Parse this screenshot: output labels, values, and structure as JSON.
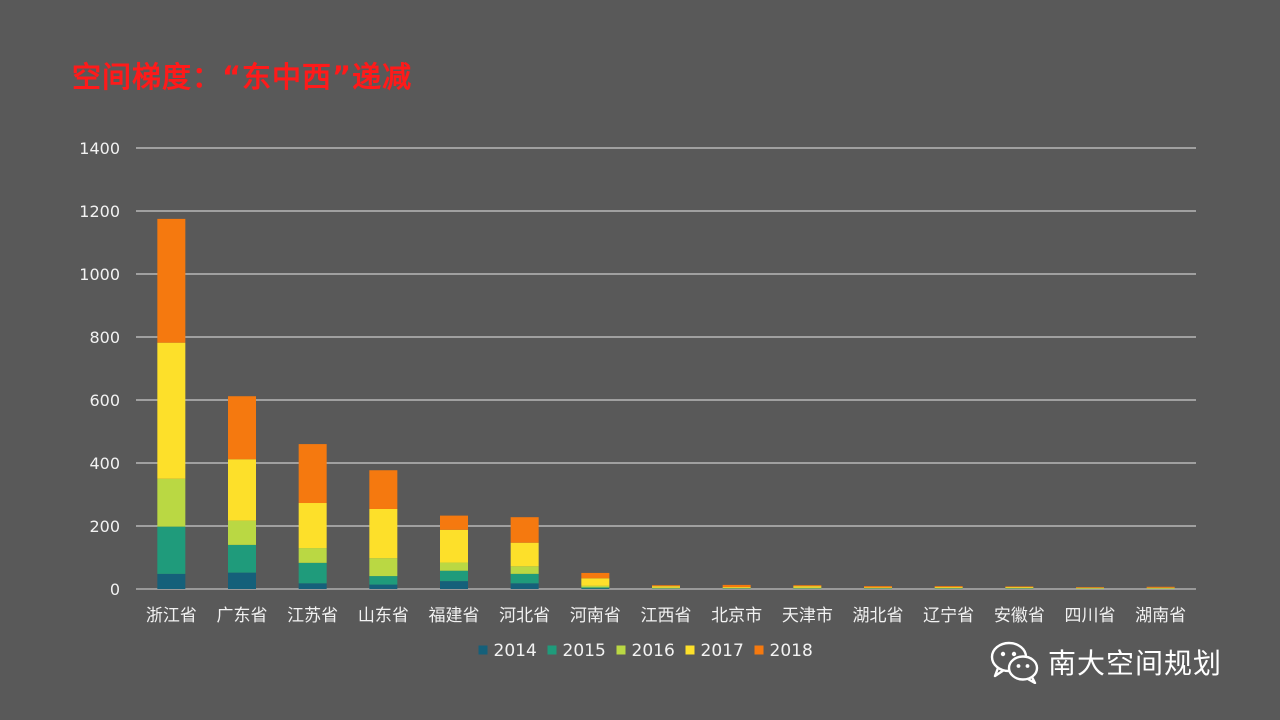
{
  "slide": {
    "title": "空间梯度：“东中西”递减",
    "watermark": "南大空间规划",
    "watermark_icon": "wechat-icon"
  },
  "chart_data": {
    "type": "bar",
    "stacked": true,
    "categories": [
      "浙江省",
      "广东省",
      "江苏省",
      "山东省",
      "福建省",
      "河北省",
      "河南省",
      "江西省",
      "北京市",
      "天津市",
      "湖北省",
      "辽宁省",
      "安徽省",
      "四川省",
      "湖南省"
    ],
    "series": [
      {
        "name": "2014",
        "color": "#15607a",
        "values": [
          48,
          52,
          18,
          14,
          25,
          18,
          2,
          1,
          1,
          1,
          1,
          1,
          1,
          0,
          0
        ]
      },
      {
        "name": "2015",
        "color": "#1f9b7b",
        "values": [
          150,
          88,
          65,
          27,
          33,
          30,
          3,
          1,
          1,
          1,
          1,
          1,
          1,
          1,
          1
        ]
      },
      {
        "name": "2016",
        "color": "#bad843",
        "values": [
          152,
          77,
          47,
          57,
          26,
          24,
          5,
          2,
          1,
          2,
          1,
          1,
          1,
          1,
          1
        ]
      },
      {
        "name": "2017",
        "color": "#fde02a",
        "values": [
          432,
          195,
          143,
          156,
          104,
          75,
          24,
          5,
          3,
          5,
          2,
          3,
          3,
          2,
          2
        ]
      },
      {
        "name": "2018",
        "color": "#f5790f",
        "values": [
          393,
          200,
          187,
          123,
          45,
          81,
          17,
          3,
          7,
          3,
          4,
          3,
          2,
          2,
          3
        ]
      }
    ],
    "xlabel": "",
    "ylabel": "",
    "ylim": [
      0,
      1400
    ],
    "yticks": [
      0,
      200,
      400,
      600,
      800,
      1000,
      1200,
      1400
    ],
    "grid": true,
    "legend": "bottom"
  }
}
